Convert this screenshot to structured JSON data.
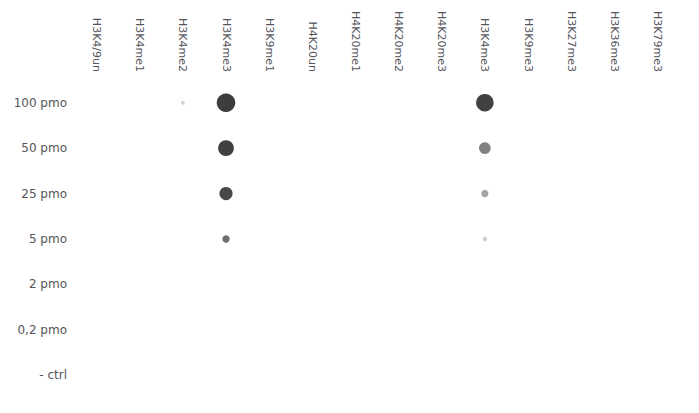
{
  "chart_data": {
    "type": "scatter",
    "categories": [
      "H3K4/9un",
      "H3K4me1",
      "H3K4me2",
      "H3K4me3",
      "H3K9me1",
      "H4K20un",
      "H4K20me1",
      "H4K20me2",
      "H4K20me3",
      "H3K4me3",
      "H3K9me3",
      "H3K27me3",
      "H3K36me3",
      "H3K79me3"
    ],
    "y_categories": [
      "100 pmo",
      "50 pmo",
      "25 pmo",
      "5 pmo",
      "2 pmo",
      "0,2 pmo",
      "- ctrl"
    ],
    "points": [
      {
        "col": 3,
        "row": 0,
        "size": 180,
        "color": "#0d0d0d"
      },
      {
        "col": 3,
        "row": 1,
        "size": 130,
        "color": "#111111"
      },
      {
        "col": 3,
        "row": 2,
        "size": 90,
        "color": "#1a1a1a"
      },
      {
        "col": 3,
        "row": 3,
        "size": 28,
        "color": "#4a4a4a"
      },
      {
        "col": 2,
        "row": 0,
        "size": 8,
        "color": "#c8c8c8"
      },
      {
        "col": 9,
        "row": 0,
        "size": 160,
        "color": "#111111"
      },
      {
        "col": 9,
        "row": 1,
        "size": 70,
        "color": "#606060"
      },
      {
        "col": 9,
        "row": 2,
        "size": 28,
        "color": "#909090"
      },
      {
        "col": 9,
        "row": 3,
        "size": 10,
        "color": "#c0c0c0"
      }
    ],
    "grid": false,
    "legend": false
  }
}
